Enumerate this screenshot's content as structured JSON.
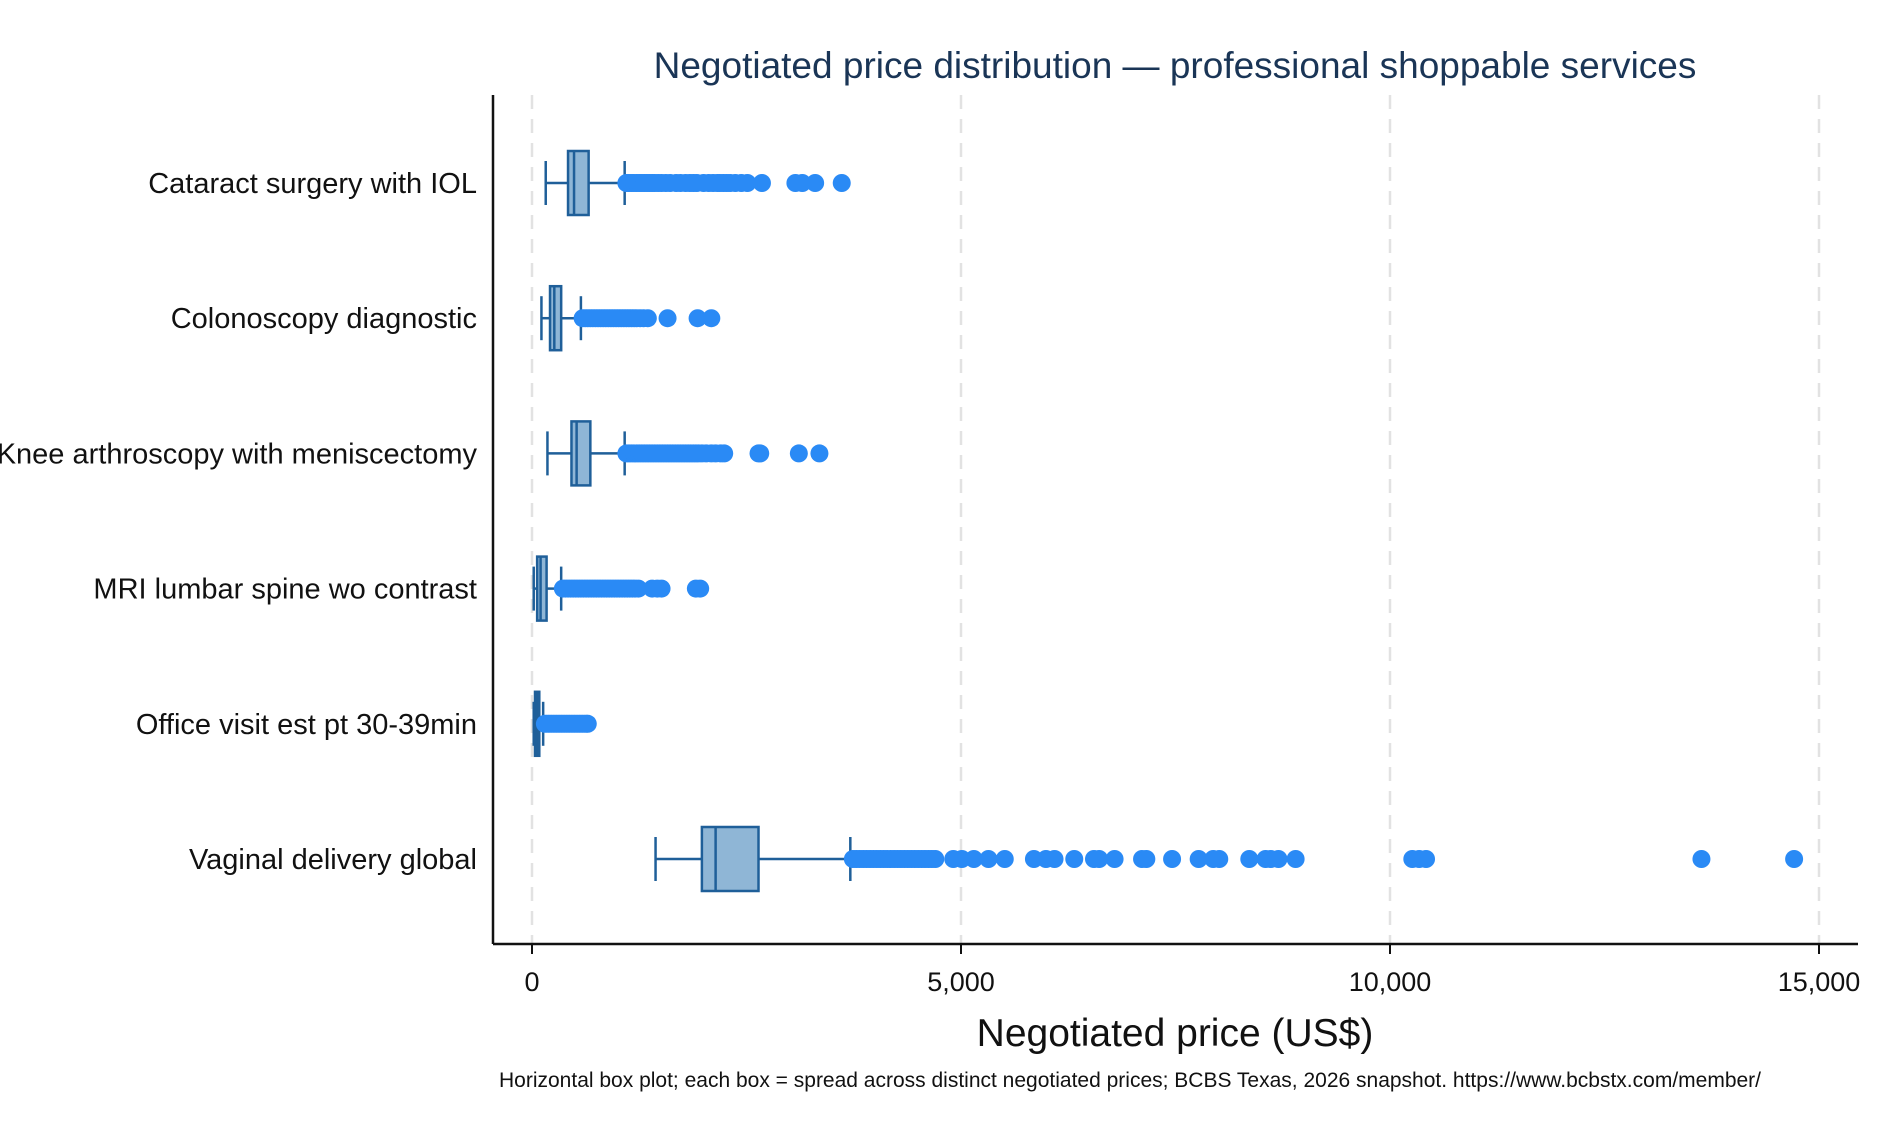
{
  "chart_data": {
    "type": "boxplot",
    "orientation": "horizontal",
    "title": "Negotiated price distribution — professional shoppable services",
    "xlabel": "Negotiated price (US$)",
    "ylabel": "",
    "note": "Horizontal box plot; each box = spread across distinct negotiated prices; BCBS Texas, 2026 snapshot. https://www.bcbstx.com/member/",
    "xlim": [
      -450,
      15450
    ],
    "xticks": [
      0,
      5000,
      10000,
      15000
    ],
    "xtick_labels": [
      "0",
      "5,000",
      "10,000",
      "15,000"
    ],
    "grid": true,
    "colors": {
      "box_fill": "#8fb6d6",
      "box_stroke": "#1f5f99",
      "outlier": "#2a8af5",
      "grid": "#e2e2e2",
      "title": "#1a3556"
    },
    "categories": [
      "Cataract surgery with IOL",
      "Colonoscopy diagnostic",
      "Knee arthroscopy with meniscectomy",
      "MRI lumbar spine wo contrast",
      "Office visit est pt 30-39min",
      "Vaginal delivery global"
    ],
    "boxes": [
      {
        "whisker_low": 160,
        "q1": 420,
        "median": 490,
        "q3": 660,
        "whisker_high": 1080,
        "outliers": [
          1100,
          1130,
          1160,
          1190,
          1220,
          1250,
          1280,
          1310,
          1340,
          1370,
          1400,
          1430,
          1470,
          1510,
          1560,
          1610,
          1680,
          1730,
          1790,
          1840,
          1880,
          1920,
          2000,
          2060,
          2110,
          2160,
          2190,
          2230,
          2270,
          2310,
          2370,
          2440,
          2510,
          2680,
          3070,
          3150,
          3300,
          3610
        ]
      },
      {
        "whisker_low": 110,
        "q1": 210,
        "median": 260,
        "q3": 340,
        "whisker_high": 570,
        "outliers": [
          590,
          620,
          650,
          680,
          710,
          740,
          770,
          800,
          830,
          860,
          890,
          920,
          950,
          980,
          1010,
          1040,
          1070,
          1100,
          1130,
          1160,
          1190,
          1220,
          1260,
          1300,
          1350,
          1580,
          1930,
          2090
        ]
      },
      {
        "whisker_low": 180,
        "q1": 460,
        "median": 520,
        "q3": 680,
        "whisker_high": 1080,
        "outliers": [
          1100,
          1130,
          1160,
          1190,
          1220,
          1250,
          1280,
          1310,
          1340,
          1370,
          1400,
          1430,
          1460,
          1490,
          1520,
          1550,
          1580,
          1610,
          1640,
          1670,
          1700,
          1730,
          1760,
          1790,
          1820,
          1850,
          1880,
          1910,
          1940,
          1980,
          2030,
          2090,
          2140,
          2200,
          2240,
          2640,
          2660,
          3110,
          3350
        ]
      },
      {
        "whisker_low": 20,
        "q1": 60,
        "median": 100,
        "q3": 170,
        "whisker_high": 340,
        "outliers": [
          360,
          390,
          420,
          450,
          480,
          510,
          540,
          570,
          600,
          630,
          660,
          690,
          720,
          750,
          780,
          810,
          840,
          870,
          900,
          930,
          960,
          990,
          1020,
          1050,
          1080,
          1110,
          1140,
          1170,
          1200,
          1240,
          1400,
          1460,
          1510,
          1910,
          1960
        ]
      },
      {
        "whisker_low": 20,
        "q1": 35,
        "median": 60,
        "q3": 85,
        "whisker_high": 130,
        "outliers": [
          150,
          180,
          210,
          240,
          270,
          300,
          330,
          360,
          390,
          420,
          450,
          480,
          510,
          540,
          570,
          600,
          630,
          650
        ]
      },
      {
        "whisker_low": 1440,
        "q1": 1980,
        "median": 2140,
        "q3": 2640,
        "whisker_high": 3710,
        "outliers": [
          3740,
          3780,
          3820,
          3860,
          3900,
          3940,
          3980,
          4020,
          4060,
          4100,
          4140,
          4180,
          4220,
          4260,
          4300,
          4340,
          4380,
          4420,
          4460,
          4500,
          4540,
          4580,
          4620,
          4660,
          4700,
          4910,
          5010,
          5150,
          5320,
          5510,
          5850,
          5990,
          6090,
          6320,
          6550,
          6610,
          6790,
          7110,
          7160,
          7460,
          7770,
          7940,
          8010,
          8360,
          8550,
          8610,
          8700,
          8900,
          10260,
          10340,
          10420,
          13630,
          14710
        ]
      }
    ]
  }
}
